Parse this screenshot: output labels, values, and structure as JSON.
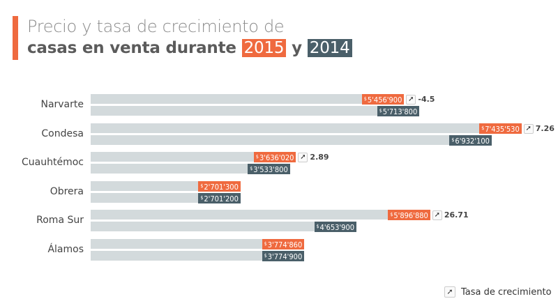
{
  "title_line1": "Precio y tasa de crecimiento de",
  "title_line2": "casas en venta durante",
  "title_conj": "y",
  "year_2015": "2015",
  "year_2014": "2014",
  "colors": {
    "y2015": "#ef6a3f",
    "y2014": "#4a5f69",
    "bar": "#d3dadc"
  },
  "legend": {
    "icon": "growth-arrow-icon",
    "label": "Tasa de crecimiento"
  },
  "chart_data": {
    "type": "bar",
    "orientation": "horizontal",
    "categories": [
      "Narvarte",
      "Condesa",
      "Cuauhtémoc",
      "Obrera",
      "Roma Sur",
      "Álamos"
    ],
    "series": [
      {
        "name": "2015",
        "values": [
          5456900,
          7435530,
          3636020,
          2701300,
          5896880,
          3774860
        ],
        "labels": [
          "5'456'900",
          "7'435'530",
          "3'636'020",
          "2'701'300",
          "5'896'880",
          "3'774'860"
        ]
      },
      {
        "name": "2014",
        "values": [
          5713800,
          6932100,
          3533800,
          2701200,
          4653900,
          3774900
        ],
        "labels": [
          "5'713'800",
          "6'932'100",
          "3'533'800",
          "2'701'200",
          "4'653'900",
          "3'774'900"
        ]
      }
    ],
    "growth": [
      "-4.5",
      "7.26",
      "2.89",
      null,
      "26.71",
      null
    ],
    "currency_symbol": "$"
  }
}
